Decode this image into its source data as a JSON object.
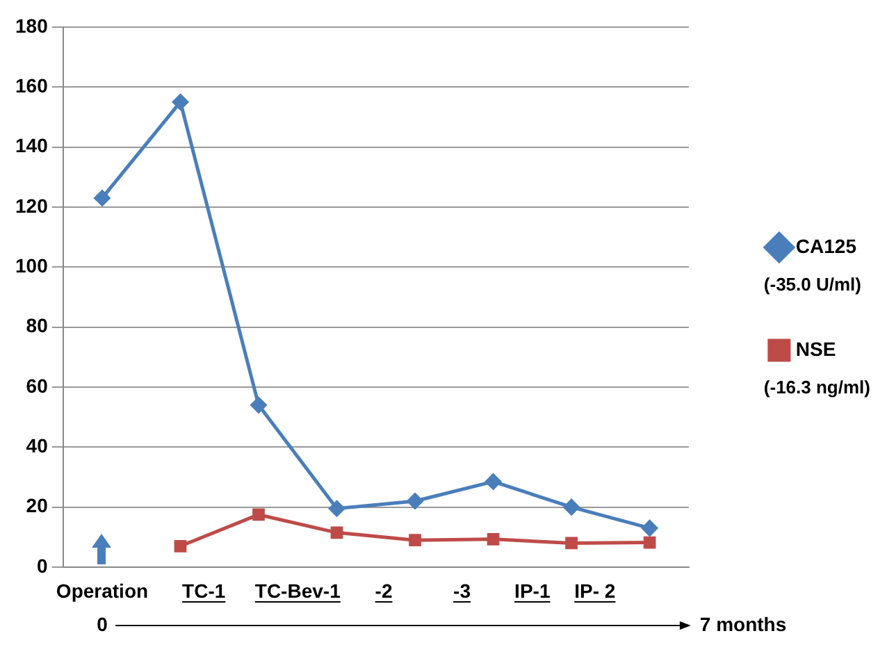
{
  "chart_data": {
    "type": "line",
    "categories": [
      null,
      null,
      null,
      null,
      null,
      null,
      null,
      null
    ],
    "series": [
      {
        "name": "CA125",
        "color": "#4a7ebb",
        "marker": "diamond",
        "values": [
          123,
          155,
          54,
          19.5,
          22,
          28.5,
          20,
          13
        ]
      },
      {
        "name": "NSE",
        "color": "#be4b48",
        "marker": "square",
        "values": [
          null,
          7,
          17.5,
          11.5,
          9,
          9.3,
          8,
          8.2
        ]
      }
    ],
    "ylim": [
      0,
      180
    ],
    "yticks": [
      0,
      20,
      40,
      60,
      80,
      100,
      120,
      140,
      160,
      180
    ],
    "grid": "y",
    "legend": "right",
    "annotations": [
      "Operation",
      "TC-1",
      "TC-Bev-1",
      "-2",
      "-3",
      "IP-1",
      "IP- 2",
      "0",
      "7 months",
      "(-35.0 U/ml)",
      "(-16.3 ng/ml)"
    ]
  }
}
